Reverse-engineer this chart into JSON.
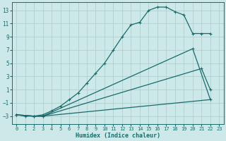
{
  "xlabel": "Humidex (Indice chaleur)",
  "bg_color": "#cce8e8",
  "grid_color": "#b0d0d0",
  "line_color": "#1a6b6b",
  "xlim": [
    -0.5,
    23.5
  ],
  "ylim": [
    -4.2,
    14.2
  ],
  "yticks": [
    -3,
    -1,
    1,
    3,
    5,
    7,
    9,
    11,
    13
  ],
  "xticks": [
    0,
    1,
    2,
    3,
    4,
    5,
    6,
    7,
    8,
    9,
    10,
    11,
    12,
    13,
    14,
    15,
    16,
    17,
    18,
    19,
    20,
    21,
    22,
    23
  ],
  "curve1_x": [
    0,
    1,
    2,
    3,
    4,
    5,
    6,
    7,
    8,
    9,
    10,
    11,
    12,
    13,
    14,
    15,
    16,
    17,
    18,
    19,
    20,
    21,
    22
  ],
  "curve1_y": [
    -2.8,
    -3.0,
    -3.0,
    -2.8,
    -2.2,
    -1.5,
    -0.5,
    0.5,
    2.0,
    3.5,
    5.0,
    7.0,
    9.0,
    10.8,
    11.2,
    13.0,
    13.5,
    13.5,
    12.8,
    12.3,
    9.5,
    9.5,
    9.5
  ],
  "curve2_x": [
    0,
    2,
    3,
    20,
    22
  ],
  "curve2_y": [
    -2.8,
    -3.0,
    -3.0,
    7.2,
    -0.5
  ],
  "curve3_x": [
    0,
    2,
    3,
    21,
    22
  ],
  "curve3_y": [
    -2.8,
    -3.0,
    -3.0,
    4.2,
    1.0
  ],
  "curve4_x": [
    0,
    2,
    3,
    22
  ],
  "curve4_y": [
    -2.8,
    -3.0,
    -3.0,
    -0.5
  ]
}
